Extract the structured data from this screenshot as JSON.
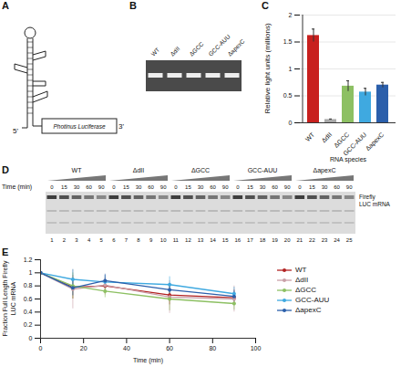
{
  "panel_letters": [
    "A",
    "B",
    "C",
    "D",
    "E"
  ],
  "panel_a": {
    "five_prime": "5'",
    "three_prime": "3'",
    "box_label": "Photinus Luciferase"
  },
  "panel_b": {
    "lanes": [
      "WT",
      "ΔdII",
      "ΔGCC",
      "GCC-AUU",
      "ΔapexC"
    ]
  },
  "panel_d": {
    "groups": [
      "WT",
      "ΔdII",
      "ΔGCC",
      "GCC-AUU",
      "ΔapexC"
    ],
    "time_label": "Time (min)",
    "times": [
      0,
      15,
      30,
      60,
      90
    ],
    "lane_numbers": [
      1,
      2,
      3,
      4,
      5,
      6,
      7,
      8,
      9,
      10,
      11,
      12,
      13,
      14,
      15,
      16,
      17,
      18,
      19,
      20,
      21,
      22,
      23,
      24,
      25
    ],
    "band_label": "Firefly LUC mRNA"
  },
  "chart_data": [
    {
      "type": "bar",
      "categories": [
        "WT",
        "ΔdII",
        "ΔGCC",
        "GCC-AUU",
        "ΔapexC"
      ],
      "values": [
        1.62,
        0.06,
        0.68,
        0.57,
        0.7
      ],
      "errors": [
        0.12,
        0.01,
        0.1,
        0.07,
        0.05
      ],
      "colors": [
        "#c8201e",
        "#a8a8a8",
        "#8dc063",
        "#3fa9e0",
        "#2b5fab"
      ],
      "xlabel": "RNA species",
      "ylabel": "Relative light units (millions)",
      "ylim": [
        0,
        2
      ],
      "yticks": [
        0,
        0.5,
        1,
        1.5,
        2
      ],
      "grid": true
    },
    {
      "type": "line",
      "x": [
        0,
        15,
        30,
        60,
        90
      ],
      "series": [
        {
          "name": "WT",
          "color": "#b22222",
          "values": [
            1,
            0.78,
            0.8,
            0.66,
            0.62
          ],
          "errors": [
            0,
            0.18,
            0.12,
            0.15,
            0.12
          ]
        },
        {
          "name": "ΔdII",
          "color": "#c9a0a8",
          "values": [
            1,
            0.75,
            0.81,
            0.63,
            0.6
          ],
          "errors": [
            0,
            0.3,
            0.15,
            0.25,
            0.2
          ]
        },
        {
          "name": "ΔGCC",
          "color": "#8dc063",
          "values": [
            1,
            0.8,
            0.72,
            0.6,
            0.53
          ],
          "errors": [
            0,
            0.2,
            0.1,
            0.18,
            0.1
          ]
        },
        {
          "name": "GCC-AUU",
          "color": "#3fa9e0",
          "values": [
            1,
            0.9,
            0.86,
            0.82,
            0.68
          ],
          "errors": [
            0,
            0.15,
            0.1,
            0.12,
            0.1
          ]
        },
        {
          "name": "ΔapexC",
          "color": "#2b5fab",
          "values": [
            1,
            0.77,
            0.88,
            0.74,
            0.64
          ],
          "errors": [
            0,
            0.12,
            0.1,
            0.1,
            0.08
          ]
        }
      ],
      "xlabel": "Time (min)",
      "ylabel": "Fraction Full Length Firefly LUC mRNA",
      "xlim": [
        0,
        100
      ],
      "xticks": [
        0,
        20,
        40,
        60,
        80,
        100
      ],
      "ylim": [
        0,
        1.2
      ],
      "yticks": [
        0,
        0.2,
        0.4,
        0.6,
        0.8,
        1,
        1.2
      ],
      "grid": false,
      "legend": "right",
      "marker": "circle"
    }
  ]
}
